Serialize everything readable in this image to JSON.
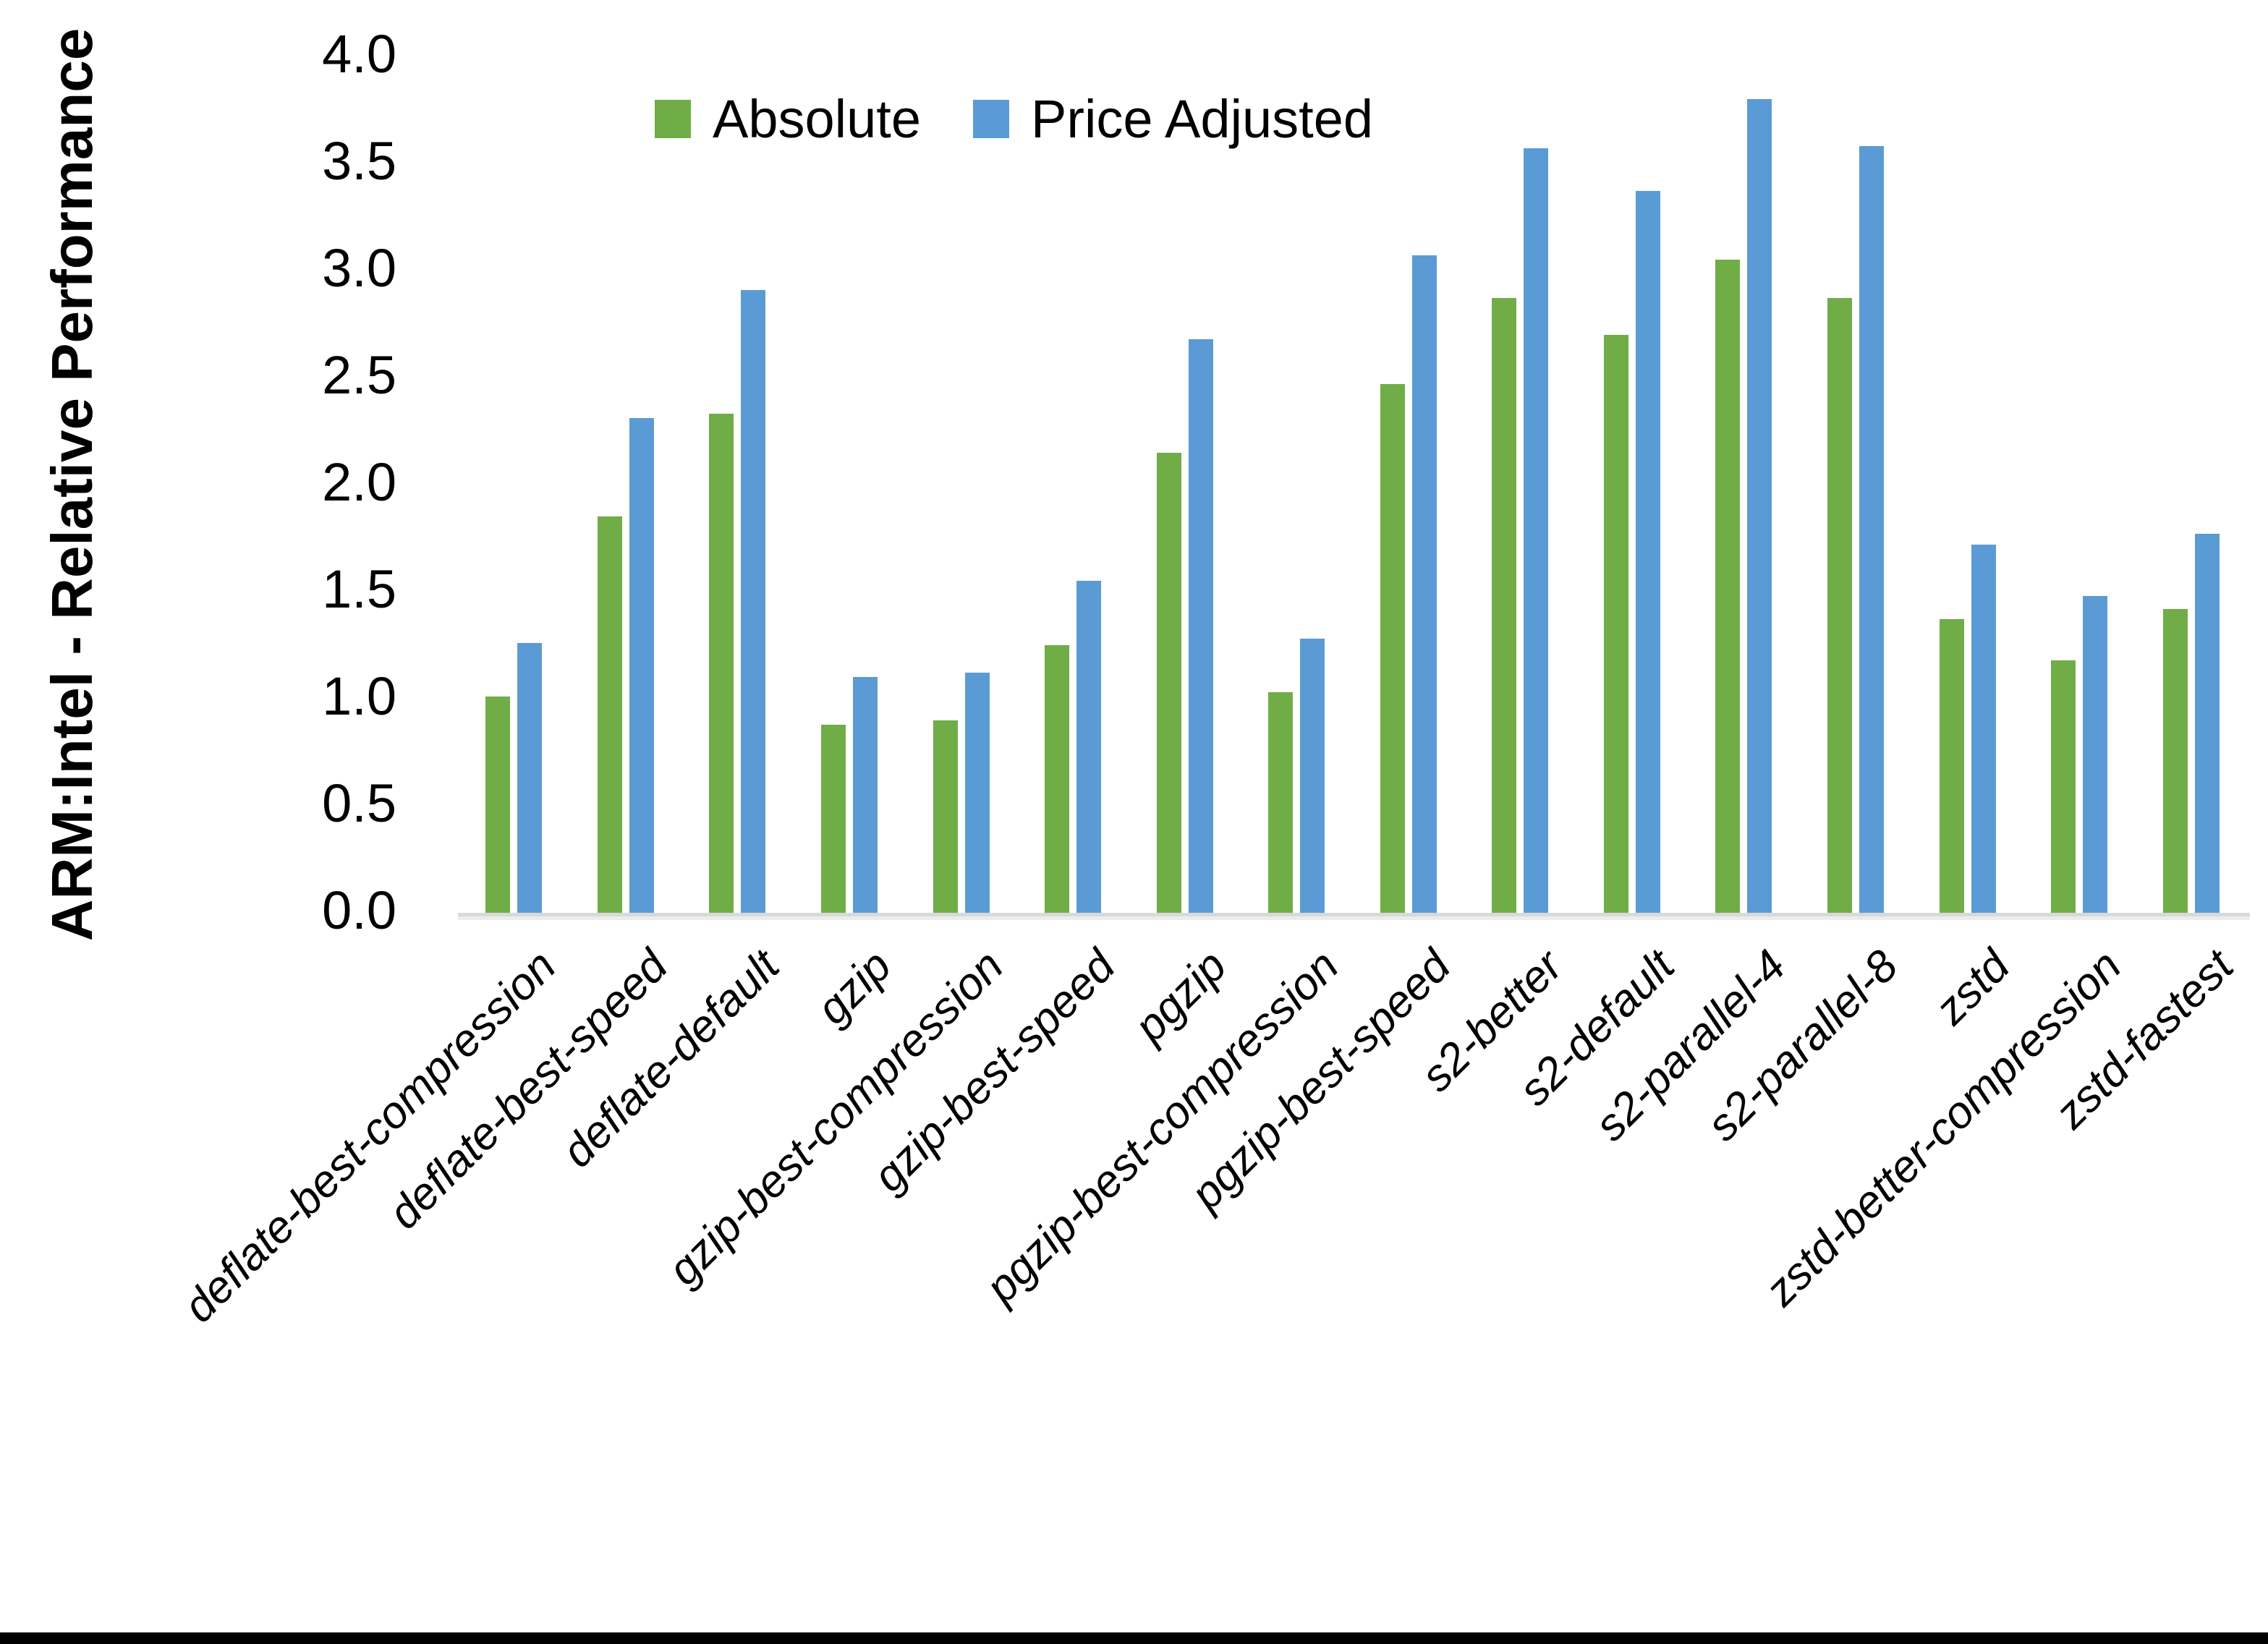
{
  "ui": {
    "y_axis_title": "ARM:Intel - Relative Performance"
  },
  "chart_data": {
    "type": "bar",
    "title": "",
    "xlabel": "",
    "ylabel": "ARM:Intel - Relative Performance",
    "ylim": [
      0.0,
      4.0
    ],
    "ytick_step": 0.5,
    "yticks": [
      "4.0",
      "3.5",
      "3.0",
      "2.5",
      "2.0",
      "1.5",
      "1.0",
      "0.5",
      "0.0"
    ],
    "grid": false,
    "legend_position": "top",
    "axis_line_color": "#d9d9d9",
    "categories": [
      "deflate-best-compression",
      "deflate-best-speed",
      "deflate-default",
      "gzip",
      "gzip-best-compression",
      "gzip-best-speed",
      "pgzip",
      "pgzip-best-compression",
      "pgzip-best-speed",
      "s2-better",
      "s2-default",
      "s2-parallel-4",
      "s2-parallel-8",
      "zstd",
      "zstd-better-compression",
      "zstd-fastest"
    ],
    "series": [
      {
        "name": "Absolute",
        "color": "#70AD47",
        "values": [
          1.01,
          1.85,
          2.33,
          0.88,
          0.9,
          1.25,
          2.15,
          1.03,
          2.47,
          2.87,
          2.7,
          3.05,
          2.87,
          1.37,
          1.18,
          1.42
        ]
      },
      {
        "name": "Price Adjusted",
        "color": "#5B9BD5",
        "values": [
          1.26,
          2.31,
          2.91,
          1.1,
          1.12,
          1.55,
          2.68,
          1.28,
          3.07,
          3.57,
          3.37,
          3.8,
          3.58,
          1.72,
          1.48,
          1.77
        ]
      }
    ]
  }
}
